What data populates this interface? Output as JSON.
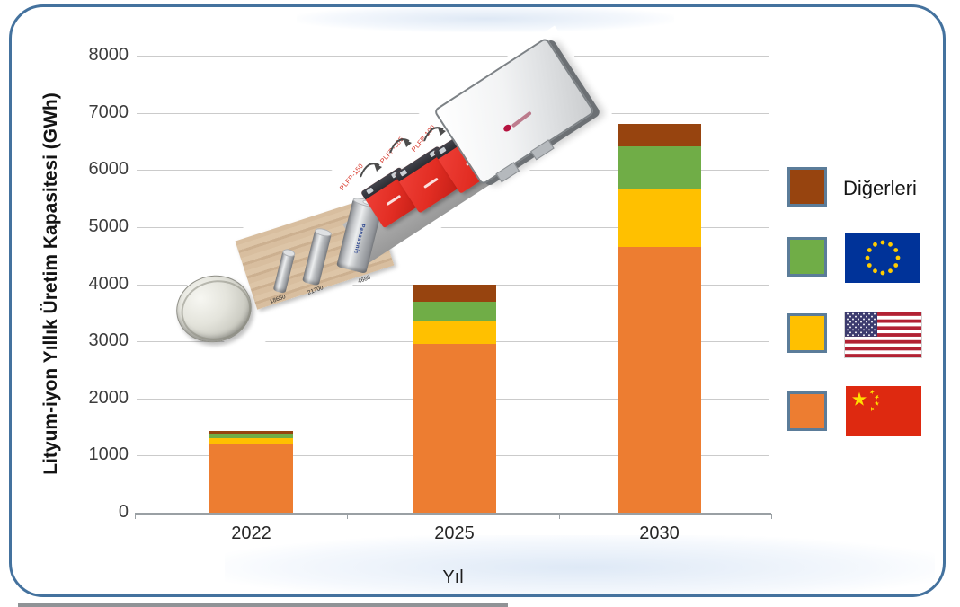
{
  "frame": {
    "border_color": "#44729e"
  },
  "chart_data": {
    "type": "bar",
    "stacked": true,
    "title": "",
    "xlabel": "Yıl",
    "ylabel": "Lityum-iyon Yıllık Üretim Kapasitesi (GWh)",
    "categories": [
      "2022",
      "2025",
      "2030"
    ],
    "series": [
      {
        "name": "Çin",
        "icon": "china-flag",
        "color": "#ED7D31",
        "values": [
          1200,
          2950,
          4650
        ]
      },
      {
        "name": "ABD",
        "icon": "us-flag",
        "color": "#FFC000",
        "values": [
          100,
          420,
          1020
        ]
      },
      {
        "name": "Avrupa Birliği",
        "icon": "eu-flag",
        "color": "#70AD47",
        "values": [
          80,
          330,
          740
        ]
      },
      {
        "name": "Diğerleri",
        "icon": null,
        "color": "#97440F",
        "values": [
          50,
          300,
          390
        ]
      }
    ],
    "totals": [
      1430,
      4000,
      6800
    ],
    "ylim": [
      0,
      8000
    ],
    "ytick_step": 1000,
    "grid": true,
    "legend_position": "right"
  },
  "legend": {
    "items": [
      {
        "label": "Diğerleri",
        "swatch": "#97440F",
        "icon": null
      },
      {
        "label": "",
        "swatch": "#70AD47",
        "icon": "eu-flag"
      },
      {
        "label": "",
        "swatch": "#FFC000",
        "icon": "us-flag"
      },
      {
        "label": "",
        "swatch": "#ED7D31",
        "icon": "china-flag"
      }
    ]
  },
  "overlay": {
    "cylinder_labels": [
      "18650",
      "21700",
      "4680"
    ],
    "cylinder_brand": "Panasonic",
    "prismatic_labels": [
      "PLFP-150",
      "PLFP-305",
      "PLFP-100"
    ]
  },
  "colors": {
    "frame": "#44729e",
    "gridline": "#cbcbcb",
    "axis": "#9aa0a4",
    "eu_blue": "#003399",
    "eu_gold": "#FFCC00",
    "us_red": "#B22234",
    "us_blue": "#3C3B6E",
    "cn_red": "#DE2910",
    "cn_gold": "#FFDE00"
  }
}
